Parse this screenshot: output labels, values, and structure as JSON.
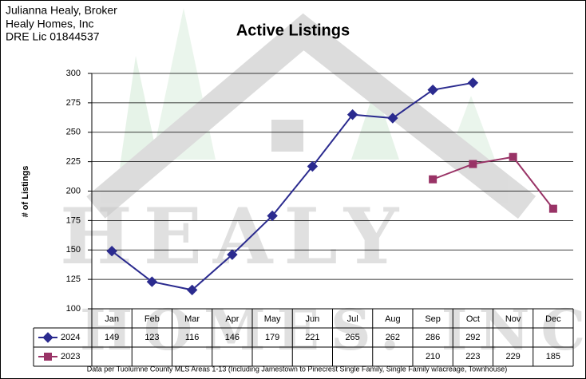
{
  "header": {
    "lines": [
      "Julianna Healy, Broker",
      "Healy Homes, Inc",
      "DRE Lic 01844537"
    ]
  },
  "watermark": [
    "HEALY",
    "HOMES. INC"
  ],
  "chart_data": {
    "type": "line",
    "title": "Active Listings",
    "y_label": "# of Listings",
    "categories": [
      "Jan",
      "Feb",
      "Mar",
      "Apr",
      "May",
      "Jun",
      "Jul",
      "Aug",
      "Sep",
      "Oct",
      "Nov",
      "Dec"
    ],
    "series": [
      {
        "name": "2024",
        "color": "#2b2b8f",
        "marker": "diamond",
        "values": [
          149,
          123,
          116,
          146,
          179,
          221,
          265,
          262,
          286,
          292,
          null,
          null
        ]
      },
      {
        "name": "2023",
        "color": "#993366",
        "marker": "square",
        "values": [
          null,
          null,
          null,
          null,
          null,
          null,
          null,
          null,
          210,
          223,
          229,
          185
        ]
      }
    ],
    "ylim": [
      100,
      300
    ],
    "yticks": [
      100,
      125,
      150,
      175,
      200,
      225,
      250,
      275,
      300
    ],
    "grid": true,
    "data_table": true,
    "footnote": "Data per Tuolumne County MLS Areas 1-13 (Including Jamestown to Pinecrest Single Family, Single Family w/acreage, Townhouse)"
  }
}
